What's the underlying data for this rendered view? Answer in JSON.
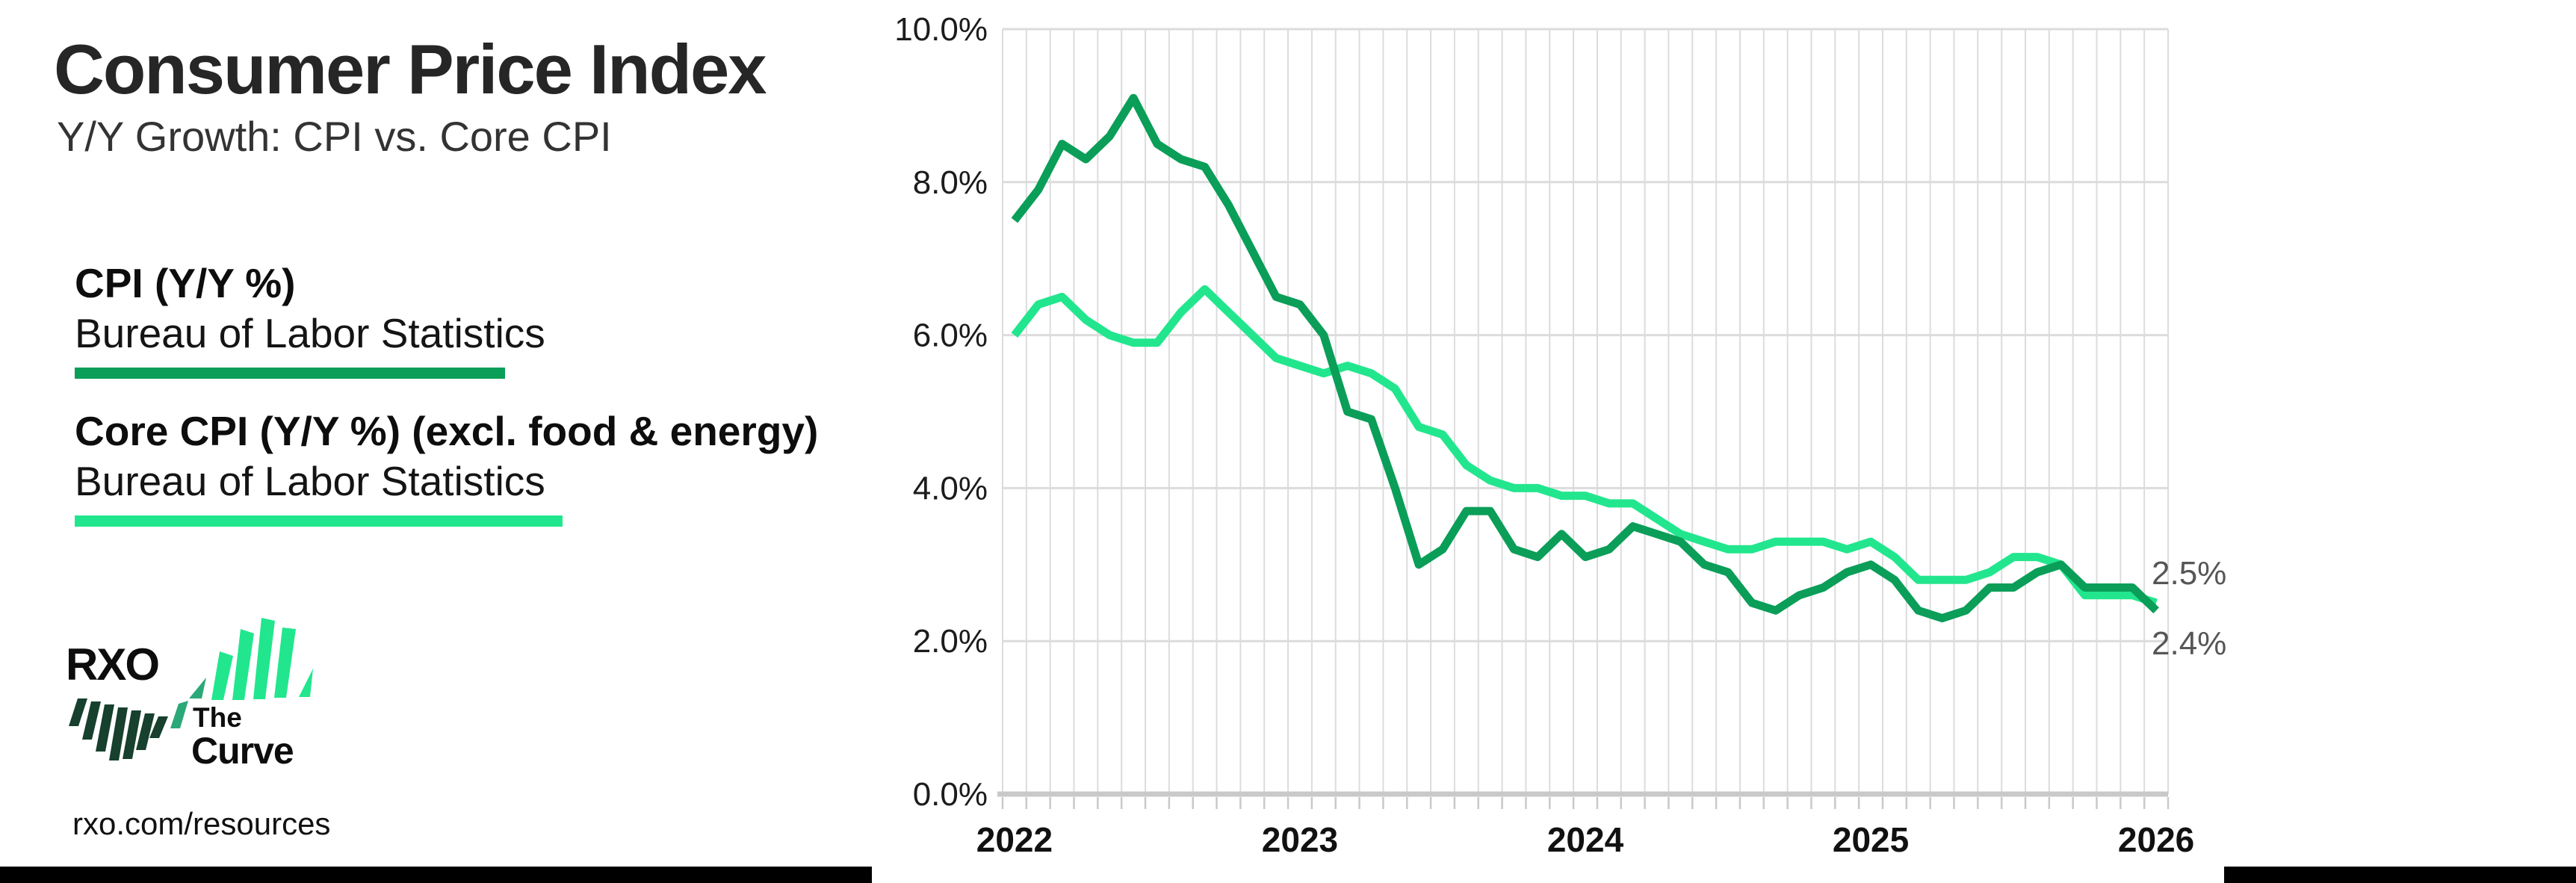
{
  "header": {
    "title": "Consumer Price Index",
    "subtitle": "Y/Y Growth: CPI vs. Core CPI"
  },
  "legend": [
    {
      "label": "CPI (Y/Y %)",
      "source": "Bureau of Labor Statistics",
      "color": "#0a9e58"
    },
    {
      "label": "Core CPI (Y/Y %) (excl. food & energy)",
      "source": "Bureau of Labor Statistics",
      "color": "#22e68d"
    }
  ],
  "branding": {
    "logo_text": "RXO",
    "tagline_top": "The",
    "tagline_bottom": "Curve",
    "url": "rxo.com/resources"
  },
  "colors": {
    "line_cpi": "#0a9e58",
    "line_core": "#22e68d",
    "logo_dark_green": "#17402e",
    "logo_mid_green": "#2aa878",
    "grid": "#dcdcdc",
    "axis": "#c9c9c9",
    "tick_text": "#1c1c1c",
    "end_label_text": "#565656",
    "footer_bar": "#000000"
  },
  "chart_data": {
    "type": "line",
    "title": "Consumer Price Index",
    "subtitle": "Y/Y Growth: CPI vs. Core CPI",
    "xlabel": "",
    "ylabel": "",
    "ylim": [
      0,
      10
    ],
    "grid": "monthly vertical gridlines; horizontal gridlines every 2%",
    "legend_position": "left panel, outside plot",
    "y_tick_labels": [
      "10.0%",
      "8.0%",
      "6.0%",
      "4.0%",
      "2.0%",
      "0.0%"
    ],
    "y_tick_values": [
      10,
      8,
      6,
      4,
      2,
      0
    ],
    "x_tick_labels": [
      "2022",
      "2023",
      "2024",
      "2025",
      "2026"
    ],
    "x_tick_month_indices": [
      0,
      12,
      24,
      36,
      48
    ],
    "months": [
      "2022-01",
      "2022-02",
      "2022-03",
      "2022-04",
      "2022-05",
      "2022-06",
      "2022-07",
      "2022-08",
      "2022-09",
      "2022-10",
      "2022-11",
      "2022-12",
      "2023-01",
      "2023-02",
      "2023-03",
      "2023-04",
      "2023-05",
      "2023-06",
      "2023-07",
      "2023-08",
      "2023-09",
      "2023-10",
      "2023-11",
      "2023-12",
      "2024-01",
      "2024-02",
      "2024-03",
      "2024-04",
      "2024-05",
      "2024-06",
      "2024-07",
      "2024-08",
      "2024-09",
      "2024-10",
      "2024-11",
      "2024-12",
      "2025-01",
      "2025-02",
      "2025-03",
      "2025-04",
      "2025-05",
      "2025-06",
      "2025-07",
      "2025-08",
      "2025-09",
      "2025-10",
      "2025-11",
      "2025-12",
      "2026-01"
    ],
    "series": [
      {
        "name": "CPI (Y/Y %)",
        "source": "Bureau of Labor Statistics",
        "color": "#0a9e58",
        "end_label": "2.4%",
        "values": [
          7.5,
          7.9,
          8.5,
          8.3,
          8.6,
          9.1,
          8.5,
          8.3,
          8.2,
          7.7,
          7.1,
          6.5,
          6.4,
          6.0,
          5.0,
          4.9,
          4.0,
          3.0,
          3.2,
          3.7,
          3.7,
          3.2,
          3.1,
          3.4,
          3.1,
          3.2,
          3.5,
          3.4,
          3.3,
          3.0,
          2.9,
          2.5,
          2.4,
          2.6,
          2.7,
          2.9,
          3.0,
          2.8,
          2.4,
          2.3,
          2.4,
          2.7,
          2.7,
          2.9,
          3.0,
          2.7,
          2.7,
          2.7,
          2.4
        ]
      },
      {
        "name": "Core CPI (Y/Y %) (excl. food & energy)",
        "source": "Bureau of Labor Statistics",
        "color": "#22e68d",
        "end_label": "2.5%",
        "values": [
          6.0,
          6.4,
          6.5,
          6.2,
          6.0,
          5.9,
          5.9,
          6.3,
          6.6,
          6.3,
          6.0,
          5.7,
          5.6,
          5.5,
          5.6,
          5.5,
          5.3,
          4.8,
          4.7,
          4.3,
          4.1,
          4.0,
          4.0,
          3.9,
          3.9,
          3.8,
          3.8,
          3.6,
          3.4,
          3.3,
          3.2,
          3.2,
          3.3,
          3.3,
          3.3,
          3.2,
          3.3,
          3.1,
          2.8,
          2.8,
          2.8,
          2.9,
          3.1,
          3.1,
          3.0,
          2.6,
          2.6,
          2.6,
          2.5
        ]
      }
    ]
  }
}
